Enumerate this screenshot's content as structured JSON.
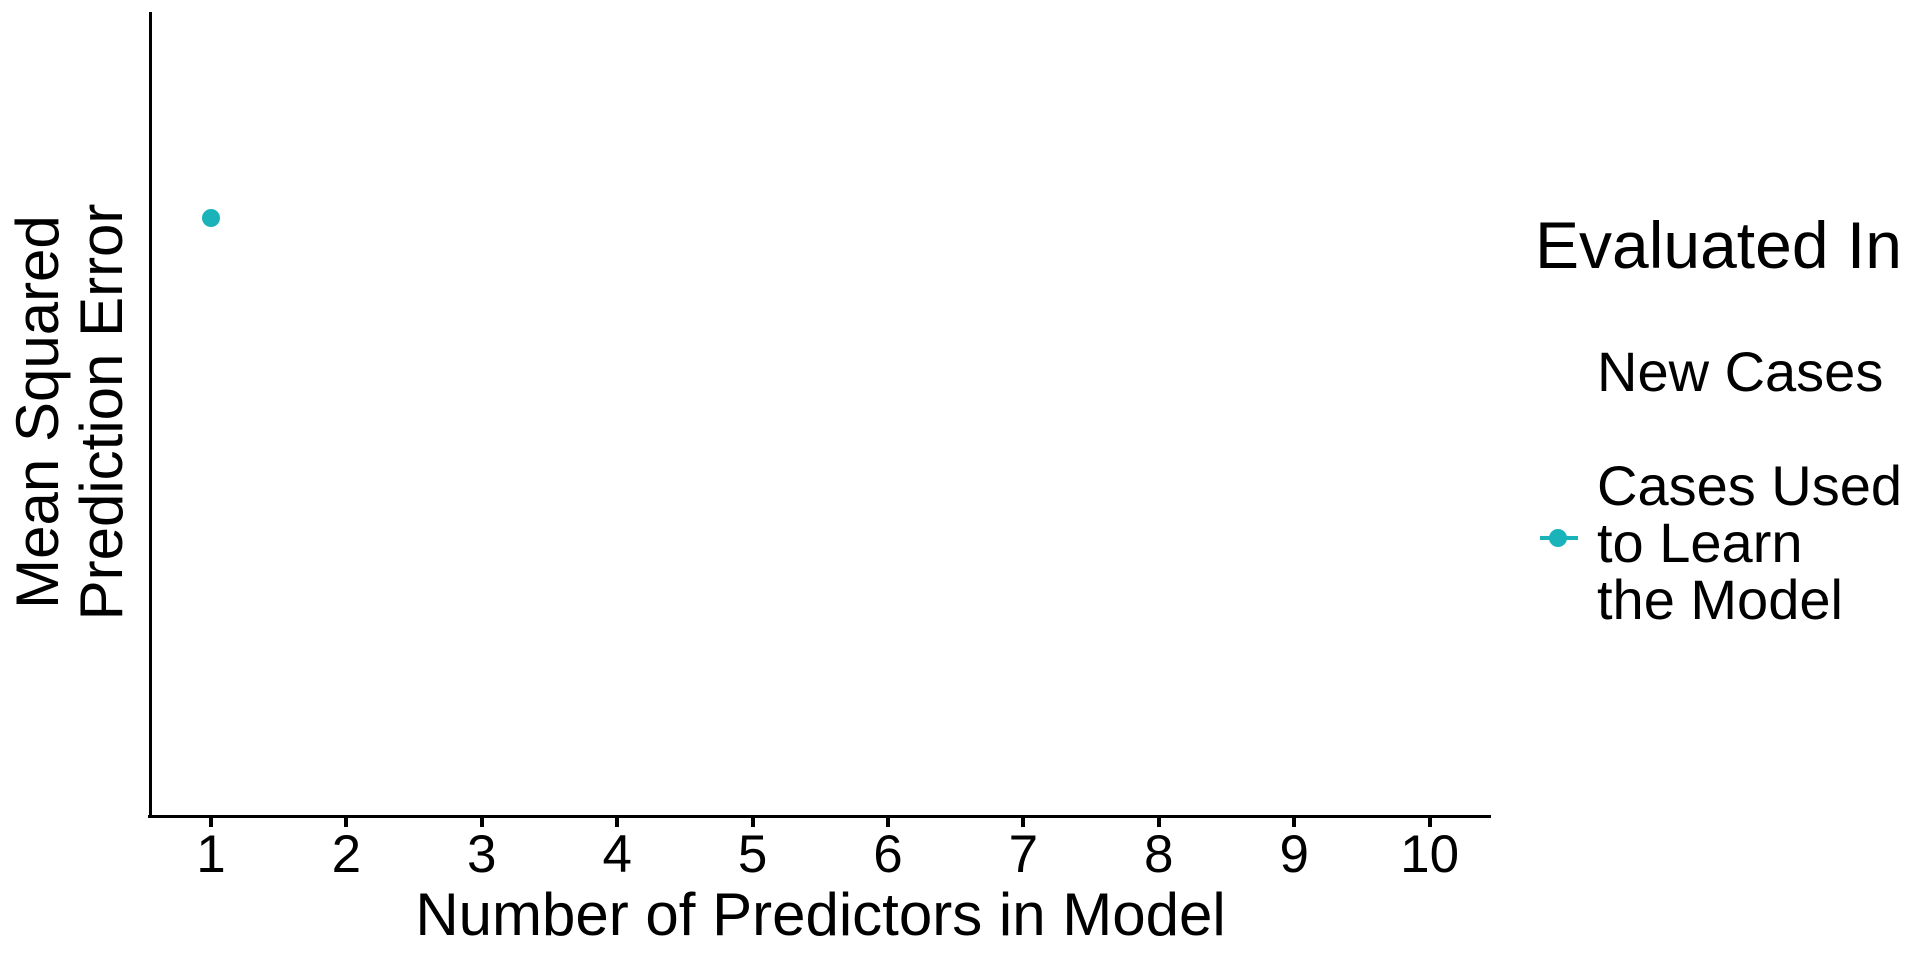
{
  "chart_data": {
    "type": "scatter",
    "title": "",
    "xlabel": "Number of Predictors in Model",
    "ylabel": "Mean Squared\nPrediction Error",
    "x_ticks": [
      "1",
      "2",
      "3",
      "4",
      "5",
      "6",
      "7",
      "8",
      "9",
      "10"
    ],
    "xlim": [
      0.55,
      10.45
    ],
    "y_axis_tick_labels": "none (axis unlabeled)",
    "grid": "off",
    "legend_position": "right",
    "series": [
      {
        "name": "Cases Used to Learn the Model",
        "color": "#1BB3BA",
        "marker": "circle",
        "points": [
          {
            "x": 1,
            "y_fraction_of_axis_height": 0.745
          }
        ]
      },
      {
        "name": "New Cases",
        "points": []
      }
    ]
  },
  "axes": {
    "x_title": "Number of Predictors in Model",
    "y_title": "Mean Squared\nPrediction Error"
  },
  "legend": {
    "title": "Evaluated In",
    "items": [
      {
        "label": "New Cases",
        "key_visible": false
      },
      {
        "label": "Cases Used\nto Learn\nthe Model",
        "key_visible": true,
        "key_color": "#1BB3BA",
        "key_shape": "point-with-line"
      }
    ]
  },
  "colors": {
    "accent_teal": "#1BB3BA",
    "axis": "#000000",
    "background": "#FFFFFF"
  }
}
